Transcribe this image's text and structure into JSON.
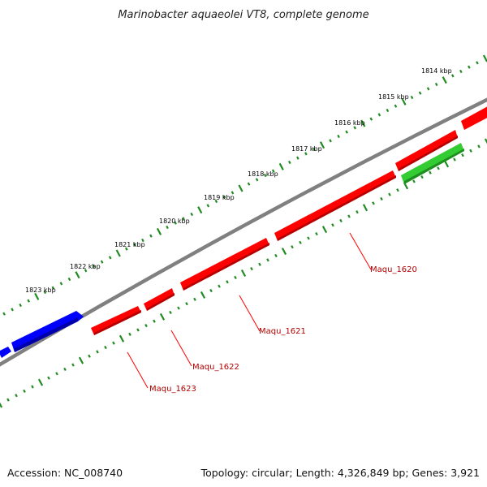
{
  "title": "Marinobacter aquaeolei VT8, complete genome",
  "footer": {
    "accession": "Accession: NC_008740",
    "summary": "Topology: circular; Length: 4,326,849 bp; Genes: 3,921"
  },
  "colors": {
    "backbone": "#808080",
    "forward_gene": "#ff0000",
    "blue_gene": "#0000ff",
    "reverse_gene": "#33cc33",
    "tick": "#228b22",
    "label_line": "#ff0000"
  },
  "scale_labels": [
    "1814 kbp",
    "1815 kbp",
    "1816 kbp",
    "1817 kbp",
    "1818 kbp",
    "1819 kbp",
    "1820 kbp",
    "1821 kbp",
    "1822 kbp",
    "1823 kbp"
  ],
  "gene_labels": [
    "Maqu_1620",
    "Maqu_1621",
    "Maqu_1622",
    "Maqu_1623"
  ]
}
